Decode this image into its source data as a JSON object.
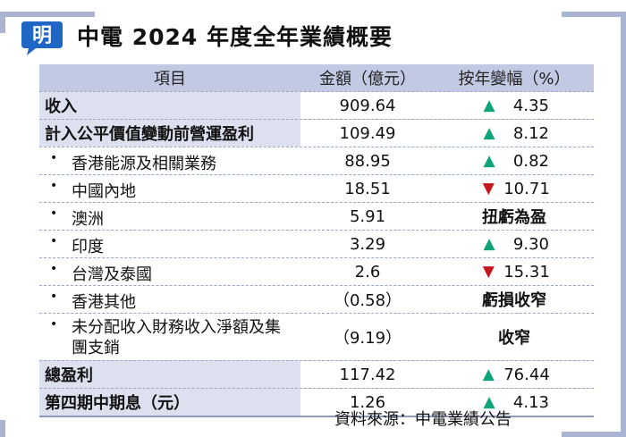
{
  "logo": {
    "glyph": "明",
    "color": "#1f66c5"
  },
  "title": "中電 2024 年度全年業績概要",
  "table": {
    "headers": [
      "項目",
      "金額（億元）",
      "按年變幅（%）"
    ],
    "rows": [
      {
        "label": "收入",
        "style": "band",
        "amount": "909.64",
        "dir": "up",
        "change": "4.35",
        "height": 30
      },
      {
        "label": "計入公平價值變動前營運盈利",
        "style": "band",
        "amount": "109.49",
        "dir": "up",
        "change": "8.12",
        "height": 30
      },
      {
        "label": "香港能源及相關業務",
        "style": "sub",
        "amount": "88.95",
        "dir": "up",
        "change": "0.82",
        "height": 30
      },
      {
        "label": "中國內地",
        "style": "sub",
        "amount": "18.51",
        "dir": "down",
        "change": "10.71",
        "height": 30
      },
      {
        "label": "澳洲",
        "style": "sub",
        "amount": "5.91",
        "dir": "",
        "change": "扭虧為盈",
        "height": 30
      },
      {
        "label": "印度",
        "style": "sub",
        "amount": "3.29",
        "dir": "up",
        "change": "9.30",
        "height": 30
      },
      {
        "label": "台灣及泰國",
        "style": "sub",
        "amount": "2.6",
        "dir": "down",
        "change": "15.31",
        "height": 30
      },
      {
        "label": "香港其他",
        "style": "sub",
        "amount": "（0.58）",
        "dir": "",
        "change": "虧損收窄",
        "height": 30
      },
      {
        "label": "未分配收入財務收入淨額及集團支銷",
        "style": "sub",
        "amount": "（9.19）",
        "dir": "",
        "change": "收窄",
        "height": 52
      },
      {
        "label": "總盈利",
        "style": "band",
        "amount": "117.42",
        "dir": "up",
        "change": "76.44",
        "height": 30
      },
      {
        "label": "第四期中期息（元）",
        "style": "band",
        "amount": "1.26",
        "dir": "up",
        "change": "4.13",
        "height": 30
      }
    ]
  },
  "source": "資料來源：中電業績公告",
  "colors": {
    "up": "#0ea37a",
    "down": "#c4151c",
    "header": "#c2c9e2",
    "band": "#dde1ef",
    "frame": "#a9b4d3"
  },
  "icons": {
    "up": "triangle-up-icon",
    "down": "triangle-down-icon"
  }
}
